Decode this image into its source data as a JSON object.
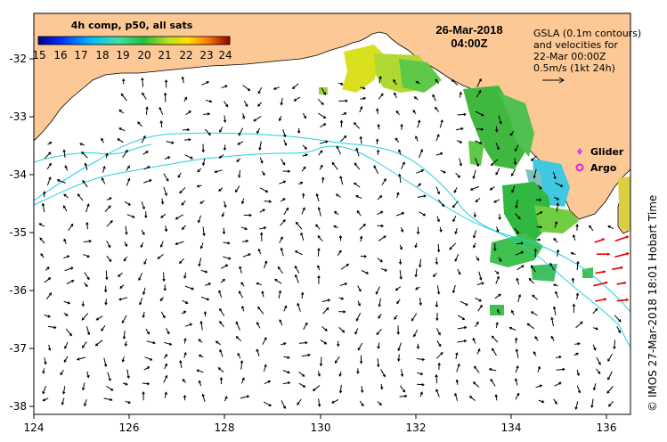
{
  "title": {
    "date": "26-Mar-2018",
    "time": "04:00Z"
  },
  "colorbar": {
    "title": "4h comp, p50, all sats",
    "ticks": [
      "15",
      "16",
      "17",
      "18",
      "19",
      "20",
      "21",
      "22",
      "23",
      "24"
    ],
    "min": 15,
    "max": 24
  },
  "gsla_note": {
    "line1": "GSLA (0.1m contours)",
    "line2": "and velocities for",
    "line3": "22-Mar 00:00Z",
    "line4": "0.5m/s (1kt 24h)"
  },
  "legend": {
    "glider": "Glider",
    "argo": "Argo",
    "glider_color": "#e040e0",
    "argo_color": "#e020e0"
  },
  "credit": "© IMOS 27-Mar-2018 18:01 Hobart Time",
  "axes": {
    "x_ticks": [
      "124",
      "126",
      "128",
      "130",
      "132",
      "134",
      "136"
    ],
    "y_ticks": [
      "-32",
      "-33",
      "-34",
      "-35",
      "-36",
      "-37",
      "-38"
    ],
    "lon_range": [
      124,
      136.5
    ],
    "lat_range": [
      -38.3,
      -31.3
    ]
  },
  "colors": {
    "land": "#fcc896",
    "contour": "#22d0e0",
    "arrow": "#000000",
    "red_arrow": "#e00000"
  }
}
